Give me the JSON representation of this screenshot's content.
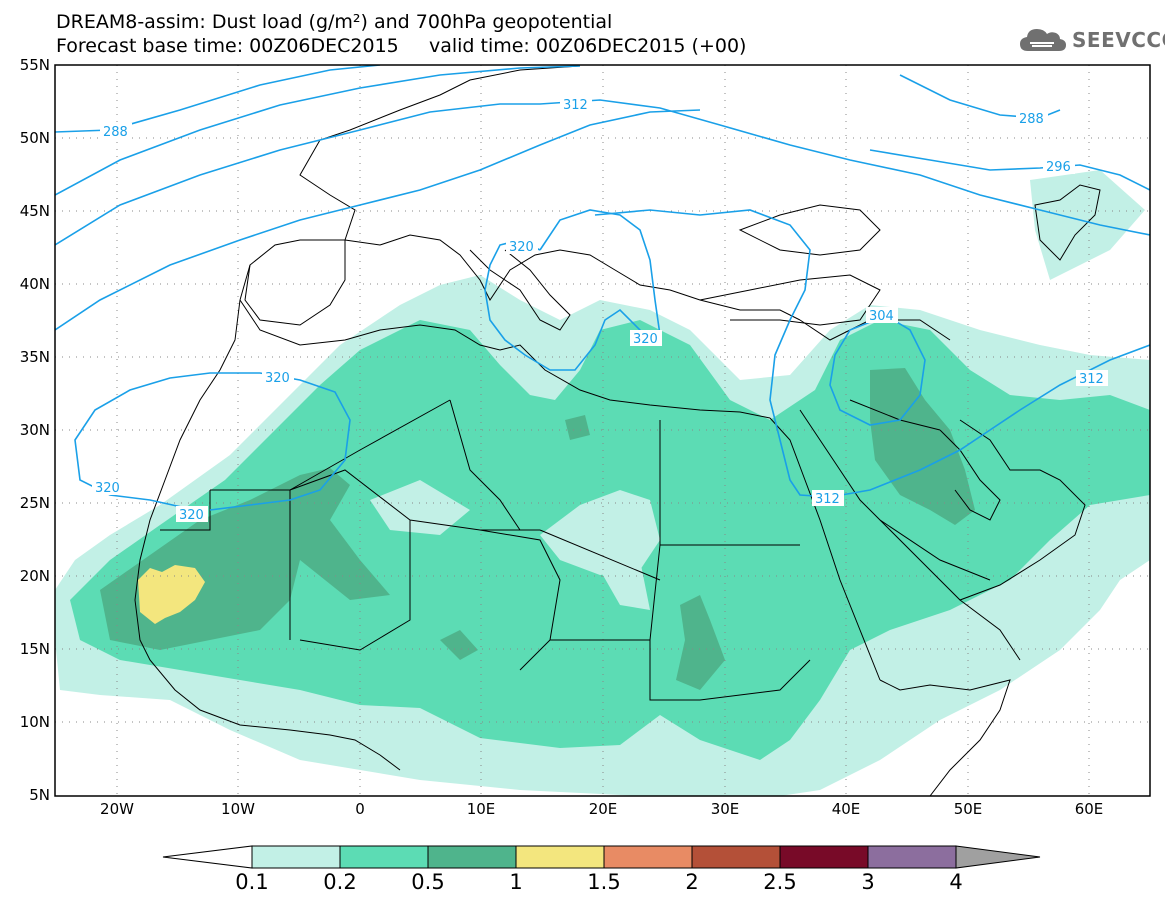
{
  "title": {
    "line1": "DREAM8-assim: Dust load (g/m²) and 700hPa geopotential",
    "line2": "Forecast base time: 00Z06DEC2015     valid time: 00Z06DEC2015 (+00)"
  },
  "logo": {
    "icon": "cloud-icon",
    "text": "SEEVCCC"
  },
  "axes": {
    "lat_labels": [
      "55N",
      "50N",
      "45N",
      "40N",
      "35N",
      "30N",
      "25N",
      "20N",
      "15N",
      "10N",
      "5N"
    ],
    "lon_labels": [
      "20W",
      "10W",
      "0",
      "10E",
      "20E",
      "30E",
      "40E",
      "50E",
      "60E"
    ],
    "lat_range": [
      5,
      55
    ],
    "lon_range": [
      -25,
      65
    ]
  },
  "isolines": {
    "color": "#1aa0e8",
    "labels": [
      "288",
      "312",
      "288",
      "296",
      "320",
      "320",
      "320",
      "320",
      "320",
      "304",
      "312",
      "312"
    ]
  },
  "colorbar": {
    "ticks": [
      "0.1",
      "0.2",
      "0.5",
      "1",
      "1.5",
      "2",
      "2.5",
      "3",
      "4"
    ],
    "colors": [
      "#ffffff",
      "#c2f0e6",
      "#5cdcb4",
      "#4fb48c",
      "#f3e67e",
      "#e88b64",
      "#b45038",
      "#780a28",
      "#8c6e9e",
      "#a0a0a0"
    ]
  },
  "dust_colors": {
    "level_0_1": "#c2f0e6",
    "level_0_2": "#5cdcb4",
    "level_0_5": "#4fb48c",
    "level_1": "#f3e67e"
  }
}
